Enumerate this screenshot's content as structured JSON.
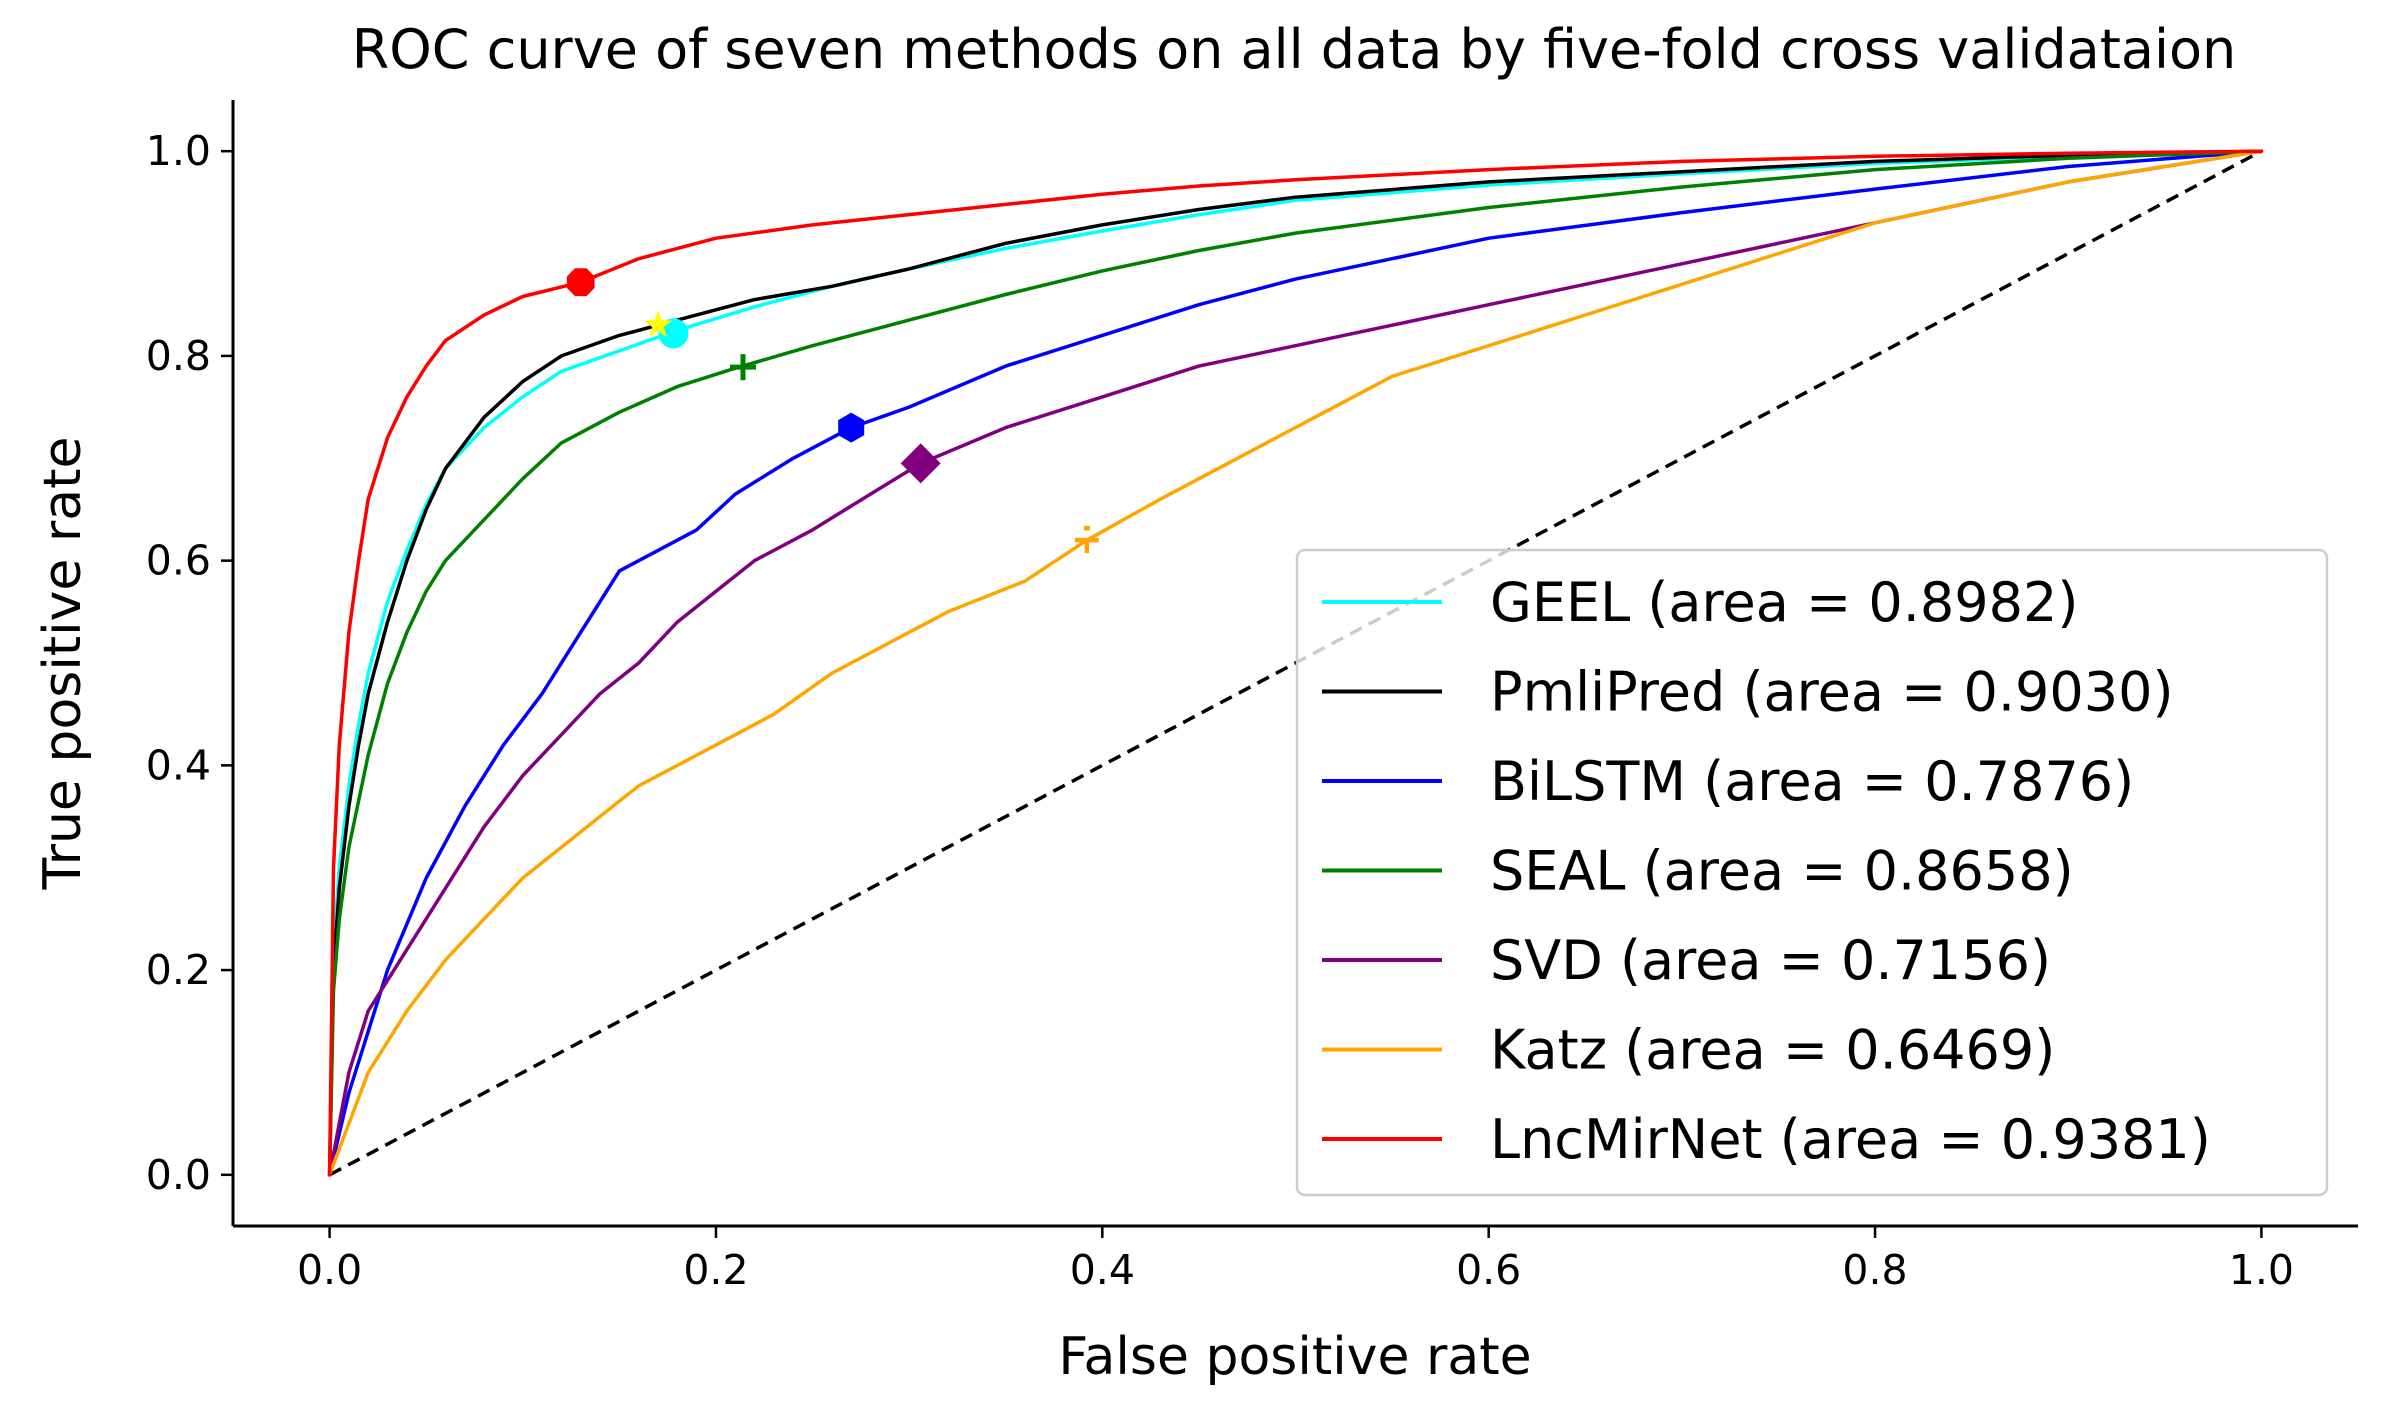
{
  "chart_data": {
    "type": "line",
    "title": "ROC curve of seven methods on all data by five-fold cross validataion",
    "xlabel": "False positive rate",
    "ylabel": "True positive rate",
    "xlim": [
      -0.05,
      1.05
    ],
    "ylim": [
      -0.05,
      1.05
    ],
    "x_ticks": [
      0.0,
      0.2,
      0.4,
      0.6,
      0.8,
      1.0
    ],
    "y_ticks": [
      0.0,
      0.2,
      0.4,
      0.6,
      0.8,
      1.0
    ],
    "x_tick_labels": [
      "0.0",
      "0.2",
      "0.4",
      "0.6",
      "0.8",
      "1.0"
    ],
    "y_tick_labels": [
      "0.0",
      "0.2",
      "0.4",
      "0.6",
      "0.8",
      "1.0"
    ],
    "grid": false,
    "legend_position": "lower-right",
    "diagonal": {
      "x": [
        0,
        1
      ],
      "y": [
        0,
        1
      ],
      "color": "#000000",
      "style": "dashed"
    },
    "series": [
      {
        "name": "GEEL",
        "legend_label": "GEEL (area = 0.8982)",
        "color": "#00ffff",
        "marker": "circle",
        "marker_point": [
          0.178,
          0.822
        ],
        "x": [
          0,
          0.002,
          0.005,
          0.01,
          0.015,
          0.02,
          0.03,
          0.04,
          0.05,
          0.06,
          0.08,
          0.1,
          0.12,
          0.15,
          0.18,
          0.22,
          0.26,
          0.3,
          0.35,
          0.4,
          0.45,
          0.5,
          0.6,
          0.7,
          0.8,
          0.9,
          1.0
        ],
        "y": [
          0,
          0.22,
          0.3,
          0.38,
          0.44,
          0.49,
          0.56,
          0.61,
          0.655,
          0.69,
          0.73,
          0.76,
          0.785,
          0.805,
          0.825,
          0.848,
          0.868,
          0.885,
          0.905,
          0.922,
          0.938,
          0.952,
          0.967,
          0.978,
          0.988,
          0.995,
          1.0
        ]
      },
      {
        "name": "PmliPred",
        "legend_label": "PmliPred (area = 0.9030)",
        "color": "#000000",
        "marker": "star",
        "marker_point": [
          0.17,
          0.83
        ],
        "x": [
          0,
          0.002,
          0.005,
          0.01,
          0.015,
          0.02,
          0.03,
          0.04,
          0.05,
          0.06,
          0.08,
          0.1,
          0.12,
          0.15,
          0.18,
          0.22,
          0.26,
          0.3,
          0.35,
          0.4,
          0.45,
          0.5,
          0.6,
          0.7,
          0.8,
          0.9,
          1.0
        ],
        "y": [
          0,
          0.2,
          0.28,
          0.36,
          0.42,
          0.47,
          0.54,
          0.6,
          0.65,
          0.69,
          0.74,
          0.775,
          0.8,
          0.82,
          0.835,
          0.855,
          0.868,
          0.885,
          0.91,
          0.928,
          0.943,
          0.955,
          0.97,
          0.98,
          0.99,
          0.996,
          1.0
        ]
      },
      {
        "name": "BiLSTM",
        "legend_label": "BiLSTM (area = 0.7876)",
        "color": "#0000ff",
        "marker": "hexagon",
        "marker_point": [
          0.27,
          0.73
        ],
        "x": [
          0,
          0.01,
          0.02,
          0.03,
          0.05,
          0.07,
          0.09,
          0.11,
          0.13,
          0.15,
          0.17,
          0.19,
          0.21,
          0.24,
          0.27,
          0.3,
          0.35,
          0.4,
          0.45,
          0.5,
          0.55,
          0.6,
          0.7,
          0.8,
          0.9,
          1.0
        ],
        "y": [
          0,
          0.08,
          0.14,
          0.2,
          0.29,
          0.36,
          0.42,
          0.47,
          0.53,
          0.59,
          0.61,
          0.63,
          0.665,
          0.7,
          0.73,
          0.75,
          0.79,
          0.82,
          0.85,
          0.875,
          0.895,
          0.915,
          0.94,
          0.963,
          0.985,
          1.0
        ]
      },
      {
        "name": "SEAL",
        "legend_label": "SEAL (area = 0.8658)",
        "color": "#008000",
        "marker": "plus",
        "marker_point": [
          0.214,
          0.789
        ],
        "x": [
          0,
          0.002,
          0.005,
          0.01,
          0.02,
          0.03,
          0.04,
          0.05,
          0.06,
          0.08,
          0.1,
          0.12,
          0.15,
          0.18,
          0.21,
          0.25,
          0.3,
          0.35,
          0.4,
          0.45,
          0.5,
          0.6,
          0.7,
          0.8,
          0.9,
          1.0
        ],
        "y": [
          0,
          0.18,
          0.25,
          0.32,
          0.41,
          0.48,
          0.53,
          0.57,
          0.6,
          0.64,
          0.68,
          0.715,
          0.745,
          0.77,
          0.788,
          0.81,
          0.835,
          0.86,
          0.883,
          0.903,
          0.92,
          0.945,
          0.965,
          0.982,
          0.993,
          1.0
        ]
      },
      {
        "name": "SVD",
        "legend_label": "SVD (area = 0.7156)",
        "color": "#800080",
        "marker": "diamond",
        "marker_point": [
          0.306,
          0.695
        ],
        "x": [
          0,
          0.01,
          0.02,
          0.04,
          0.06,
          0.08,
          0.1,
          0.12,
          0.14,
          0.16,
          0.18,
          0.2,
          0.22,
          0.25,
          0.28,
          0.306,
          0.35,
          0.4,
          0.45,
          0.5,
          0.55,
          0.6,
          0.65,
          0.7,
          0.8,
          0.9,
          1.0
        ],
        "y": [
          0,
          0.1,
          0.16,
          0.22,
          0.28,
          0.34,
          0.39,
          0.43,
          0.47,
          0.5,
          0.54,
          0.57,
          0.6,
          0.63,
          0.665,
          0.695,
          0.73,
          0.76,
          0.79,
          0.81,
          0.83,
          0.85,
          0.87,
          0.89,
          0.93,
          0.97,
          1.0
        ]
      },
      {
        "name": "Katz",
        "legend_label": "Katz (area = 0.6469)",
        "color": "#ffa500",
        "marker": "tri",
        "marker_point": [
          0.392,
          0.62
        ],
        "x": [
          0,
          0.02,
          0.04,
          0.06,
          0.08,
          0.1,
          0.12,
          0.14,
          0.16,
          0.18,
          0.2,
          0.23,
          0.26,
          0.29,
          0.32,
          0.36,
          0.392,
          0.43,
          0.47,
          0.51,
          0.55,
          0.6,
          0.65,
          0.7,
          0.75,
          0.8,
          0.85,
          0.9,
          0.95,
          1.0
        ],
        "y": [
          0,
          0.1,
          0.16,
          0.21,
          0.25,
          0.29,
          0.32,
          0.35,
          0.38,
          0.4,
          0.42,
          0.45,
          0.49,
          0.52,
          0.55,
          0.58,
          0.62,
          0.66,
          0.7,
          0.74,
          0.78,
          0.81,
          0.84,
          0.87,
          0.9,
          0.93,
          0.95,
          0.97,
          0.985,
          1.0
        ]
      },
      {
        "name": "LncMirNet",
        "legend_label": "LncMirNet (area = 0.9381)",
        "color": "#ff0000",
        "marker": "octagon",
        "marker_point": [
          0.13,
          0.872
        ],
        "x": [
          0,
          0.002,
          0.005,
          0.01,
          0.015,
          0.02,
          0.03,
          0.04,
          0.05,
          0.06,
          0.08,
          0.1,
          0.13,
          0.16,
          0.2,
          0.25,
          0.3,
          0.35,
          0.4,
          0.45,
          0.5,
          0.6,
          0.7,
          0.8,
          0.9,
          1.0
        ],
        "y": [
          0,
          0.3,
          0.42,
          0.53,
          0.6,
          0.66,
          0.72,
          0.76,
          0.79,
          0.815,
          0.84,
          0.858,
          0.872,
          0.895,
          0.915,
          0.928,
          0.938,
          0.948,
          0.958,
          0.966,
          0.972,
          0.982,
          0.99,
          0.995,
          0.998,
          1.0
        ]
      }
    ]
  }
}
